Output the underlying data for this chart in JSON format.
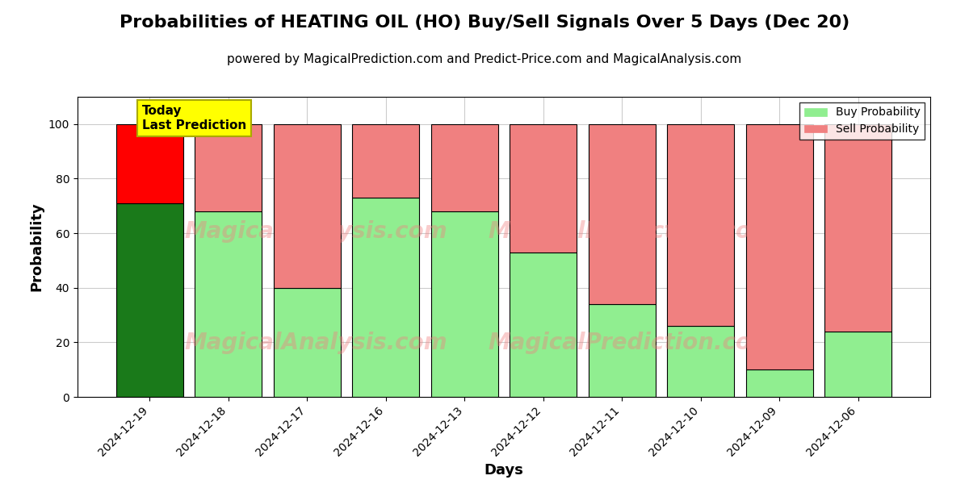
{
  "title": "Probabilities of HEATING OIL (HO) Buy/Sell Signals Over 5 Days (Dec 20)",
  "subtitle": "powered by MagicalPrediction.com and Predict-Price.com and MagicalAnalysis.com",
  "xlabel": "Days",
  "ylabel": "Probability",
  "categories": [
    "2024-12-19",
    "2024-12-18",
    "2024-12-17",
    "2024-12-16",
    "2024-12-13",
    "2024-12-12",
    "2024-12-11",
    "2024-12-10",
    "2024-12-09",
    "2024-12-06"
  ],
  "buy_values": [
    71,
    68,
    40,
    73,
    68,
    53,
    34,
    26,
    10,
    24
  ],
  "sell_values": [
    29,
    32,
    60,
    27,
    32,
    47,
    66,
    74,
    90,
    76
  ],
  "buy_colors": [
    "#1a7a1a",
    "#90ee90",
    "#90ee90",
    "#90ee90",
    "#90ee90",
    "#90ee90",
    "#90ee90",
    "#90ee90",
    "#90ee90",
    "#90ee90"
  ],
  "sell_colors": [
    "#ff0000",
    "#f08080",
    "#f08080",
    "#f08080",
    "#f08080",
    "#f08080",
    "#f08080",
    "#f08080",
    "#f08080",
    "#f08080"
  ],
  "today_label_text": "Today\nLast Prediction",
  "today_label_bg": "#ffff00",
  "today_label_color": "#000000",
  "legend_buy_label": "Buy Probability",
  "legend_sell_label": "Sell Probability",
  "legend_buy_color": "#90ee90",
  "legend_sell_color": "#f08080",
  "ylim": [
    0,
    110
  ],
  "yticks": [
    0,
    20,
    40,
    60,
    80,
    100
  ],
  "watermark_color": "#f08080",
  "watermark_alpha": 0.4,
  "dashed_line_y": 110,
  "background_color": "#ffffff",
  "grid_color": "#cccccc",
  "bar_edge_color": "#000000",
  "bar_linewidth": 0.8,
  "title_fontsize": 16,
  "subtitle_fontsize": 11,
  "axis_label_fontsize": 13,
  "tick_fontsize": 10,
  "bar_width": 0.85
}
